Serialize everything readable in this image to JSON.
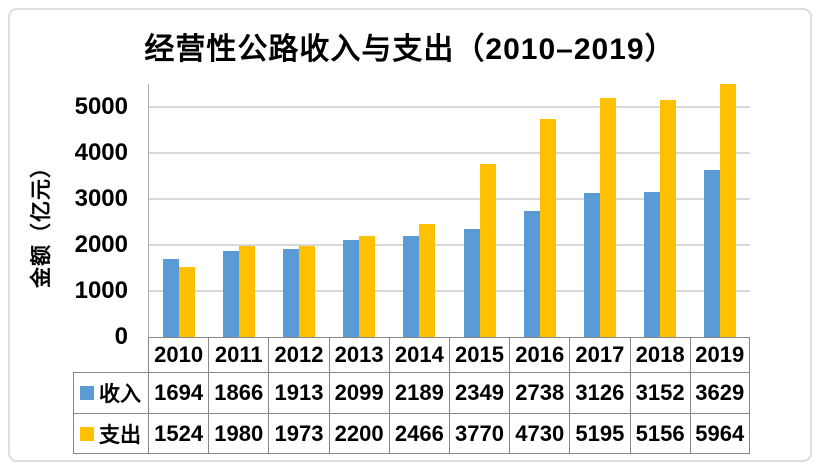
{
  "title": "经营性公路收入与支出（2010–2019）",
  "y_axis": {
    "label": "金额（亿元）",
    "ticks": [
      0,
      1000,
      2000,
      3000,
      4000,
      5000
    ],
    "max": 5500
  },
  "chart_data": {
    "type": "bar",
    "title": "经营性公路收入与支出（2010–2019）",
    "xlabel": "",
    "ylabel": "金额（亿元）",
    "ylim": [
      0,
      5500
    ],
    "grid": true,
    "legend_position": "data-table-left",
    "categories": [
      "2010",
      "2011",
      "2012",
      "2013",
      "2014",
      "2015",
      "2016",
      "2017",
      "2018",
      "2019"
    ],
    "series": [
      {
        "name": "收入",
        "color": "#5B9BD5",
        "values": [
          1694,
          1866,
          1913,
          2099,
          2189,
          2349,
          2738,
          3126,
          3152,
          3629
        ]
      },
      {
        "name": "支出",
        "color": "#FFC000",
        "values": [
          1524,
          1980,
          1973,
          2200,
          2466,
          3770,
          4730,
          5195,
          5156,
          5964
        ]
      }
    ]
  },
  "colors": {
    "income": "#5B9BD5",
    "expense": "#FFC000",
    "gridline": "#D9D9D9",
    "axis_line": "#ABABAB",
    "table_border": "#878787",
    "outer_border": "#DEDEDE"
  }
}
